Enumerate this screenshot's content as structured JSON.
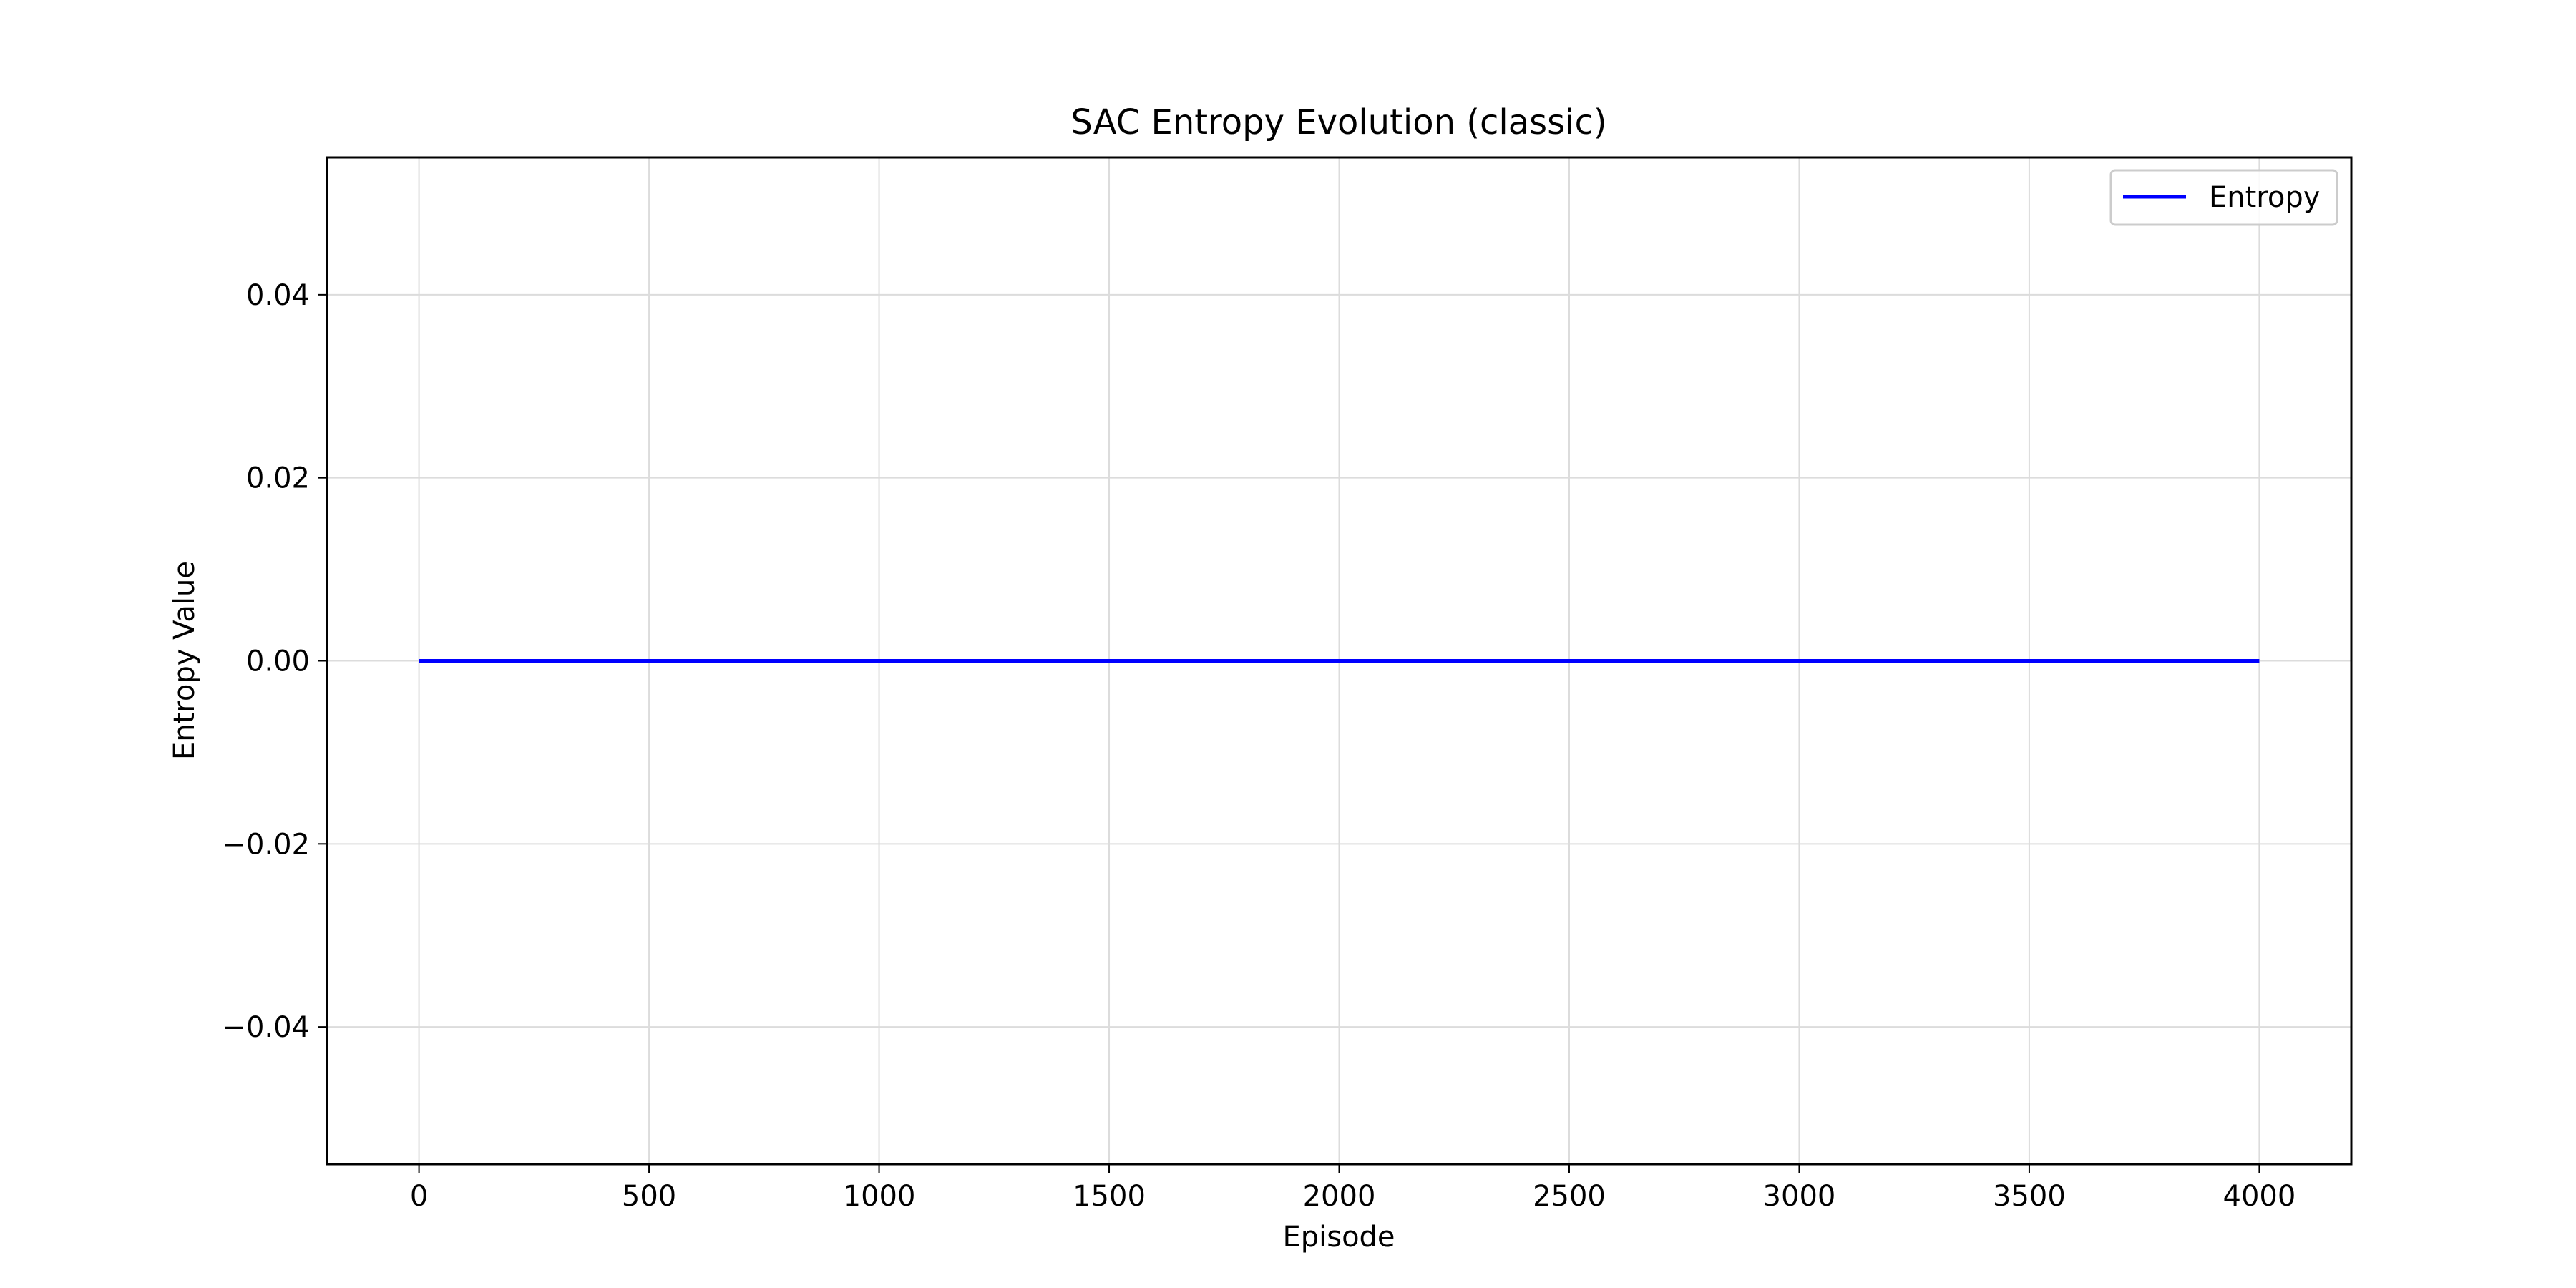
{
  "chart_data": {
    "type": "line",
    "title": "SAC Entropy Evolution (classic)",
    "xlabel": "Episode",
    "ylabel": "Entropy Value",
    "xlim": [
      -200,
      4200
    ],
    "ylim": [
      -0.055,
      0.055
    ],
    "x_ticks": [
      0,
      500,
      1000,
      1500,
      2000,
      2500,
      3000,
      3500,
      4000
    ],
    "x_tick_labels": [
      "0",
      "500",
      "1000",
      "1500",
      "2000",
      "2500",
      "3000",
      "3500",
      "4000"
    ],
    "y_ticks": [
      0.04,
      0.02,
      0.0,
      -0.02,
      -0.04
    ],
    "y_tick_labels": [
      "0.04",
      "0.02",
      "0.00",
      "−0.02",
      "−0.04"
    ],
    "grid": true,
    "legend_position": "top-right",
    "series": [
      {
        "name": "Entropy",
        "color": "#0000ff",
        "x": [
          0,
          4000
        ],
        "y": [
          0.0,
          0.0
        ]
      }
    ]
  }
}
